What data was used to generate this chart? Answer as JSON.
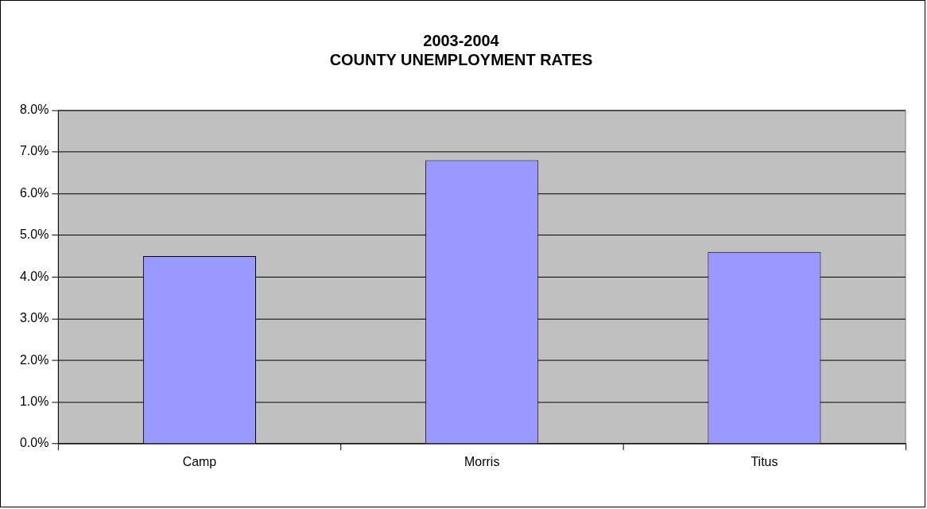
{
  "chart_data": {
    "type": "bar",
    "title": "2003-2004\nCOUNTY UNEMPLOYMENT RATES",
    "categories": [
      "Camp",
      "Morris",
      "Titus"
    ],
    "values": [
      4.5,
      6.8,
      4.6
    ],
    "color": "#9999ff",
    "ylim": [
      0,
      8
    ],
    "yticks": [
      {
        "value": 0,
        "label": "0.0%"
      },
      {
        "value": 1,
        "label": "1.0%"
      },
      {
        "value": 2,
        "label": "2.0%"
      },
      {
        "value": 3,
        "label": "3.0%"
      },
      {
        "value": 4,
        "label": "4.0%"
      },
      {
        "value": 5,
        "label": "5.0%"
      },
      {
        "value": 6,
        "label": "6.0%"
      },
      {
        "value": 7,
        "label": "7.0%"
      },
      {
        "value": 8,
        "label": "8.0%"
      }
    ],
    "grid": "y",
    "legend": false
  }
}
